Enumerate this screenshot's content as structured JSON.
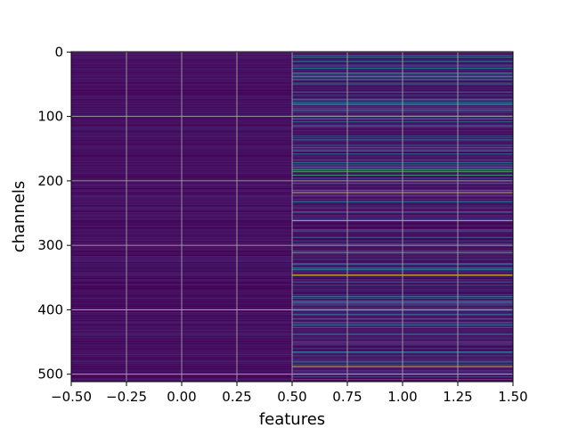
{
  "chart_data": {
    "type": "heatmap",
    "title": "",
    "xlabel": "features",
    "ylabel": "channels",
    "xlim": [
      -0.5,
      1.5
    ],
    "ylim": [
      511.5,
      -0.5
    ],
    "x_ticks": [
      -0.5,
      -0.25,
      0.0,
      0.25,
      0.5,
      0.75,
      1.0,
      1.25,
      1.5
    ],
    "x_tick_labels": [
      "−0.50",
      "−0.25",
      "0.00",
      "0.25",
      "0.50",
      "0.75",
      "1.00",
      "1.25",
      "1.50"
    ],
    "y_ticks": [
      0,
      100,
      200,
      300,
      400,
      500
    ],
    "y_tick_labels": [
      "0",
      "100",
      "200",
      "300",
      "400",
      "500"
    ],
    "grid": true,
    "colormap": "viridis",
    "n_rows": 512,
    "n_cols": 2,
    "column_ranges": [
      [
        0,
        0.08
      ],
      [
        0,
        1.0
      ]
    ],
    "highlight_rows_col1": [
      {
        "row": 8,
        "value": 0.55
      },
      {
        "row": 14,
        "value": 0.45
      },
      {
        "row": 25,
        "value": 0.5
      },
      {
        "row": 33,
        "value": 0.5
      },
      {
        "row": 38,
        "value": 0.55
      },
      {
        "row": 48,
        "value": 0.45
      },
      {
        "row": 62,
        "value": 0.4
      },
      {
        "row": 78,
        "value": 0.45
      },
      {
        "row": 90,
        "value": 0.4
      },
      {
        "row": 108,
        "value": 0.35
      },
      {
        "row": 148,
        "value": 0.35
      },
      {
        "row": 158,
        "value": 0.4
      },
      {
        "row": 172,
        "value": 0.45
      },
      {
        "row": 183,
        "value": 0.7
      },
      {
        "row": 186,
        "value": 0.75
      },
      {
        "row": 191,
        "value": 0.65
      },
      {
        "row": 200,
        "value": 0.5
      },
      {
        "row": 204,
        "value": 0.45
      },
      {
        "row": 215,
        "value": 0.55
      },
      {
        "row": 218,
        "value": 0.95
      },
      {
        "row": 232,
        "value": 0.4
      },
      {
        "row": 248,
        "value": 0.4
      },
      {
        "row": 262,
        "value": 0.9
      },
      {
        "row": 276,
        "value": 0.35
      },
      {
        "row": 300,
        "value": 0.4
      },
      {
        "row": 311,
        "value": 0.65
      },
      {
        "row": 330,
        "value": 0.4
      },
      {
        "row": 338,
        "value": 0.5
      },
      {
        "row": 346,
        "value": 0.98
      },
      {
        "row": 362,
        "value": 0.4
      },
      {
        "row": 380,
        "value": 0.45
      },
      {
        "row": 398,
        "value": 0.45
      },
      {
        "row": 420,
        "value": 0.4
      },
      {
        "row": 437,
        "value": 0.45
      },
      {
        "row": 450,
        "value": 0.4
      },
      {
        "row": 465,
        "value": 0.4
      },
      {
        "row": 480,
        "value": 0.45
      },
      {
        "row": 488,
        "value": 0.95
      },
      {
        "row": 500,
        "value": 0.4
      }
    ]
  }
}
